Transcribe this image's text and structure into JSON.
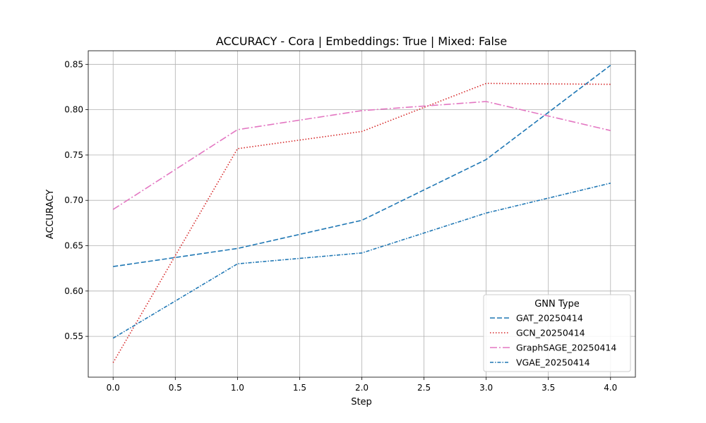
{
  "chart_data": {
    "type": "line",
    "title": "ACCURACY - Cora | Embeddings: True | Mixed: False",
    "xlabel": "Step",
    "ylabel": "ACCURACY",
    "xlim": [
      -0.2,
      4.2
    ],
    "ylim": [
      0.505,
      0.865
    ],
    "xticks": [
      0.0,
      0.5,
      1.0,
      1.5,
      2.0,
      2.5,
      3.0,
      3.5,
      4.0
    ],
    "xtick_labels": [
      "0.0",
      "0.5",
      "1.0",
      "1.5",
      "2.0",
      "2.5",
      "3.0",
      "3.5",
      "4.0"
    ],
    "yticks": [
      0.55,
      0.6,
      0.65,
      0.7,
      0.75,
      0.8,
      0.85
    ],
    "ytick_labels": [
      "0.55",
      "0.60",
      "0.65",
      "0.70",
      "0.75",
      "0.80",
      "0.85"
    ],
    "grid": true,
    "legend": {
      "title": "GNN Type",
      "placement": "lower-right"
    },
    "x": [
      0,
      1,
      2,
      3,
      4
    ],
    "series": [
      {
        "name": "GAT_20250414",
        "values": [
          0.627,
          0.647,
          0.678,
          0.745,
          0.849
        ],
        "color": "#1f77b4",
        "dash": "dashed"
      },
      {
        "name": "GCN_20250414",
        "values": [
          0.521,
          0.757,
          0.776,
          0.829,
          0.828
        ],
        "color": "#d62728",
        "dash": "dotted"
      },
      {
        "name": "GraphSAGE_20250414",
        "values": [
          0.69,
          0.778,
          0.799,
          0.809,
          0.777
        ],
        "color": "#e377c2",
        "dash": "dashdot"
      },
      {
        "name": "VGAE_20250414",
        "values": [
          0.548,
          0.63,
          0.642,
          0.686,
          0.719
        ],
        "color": "#1f77b4",
        "dash": "loosedashdot"
      }
    ]
  }
}
